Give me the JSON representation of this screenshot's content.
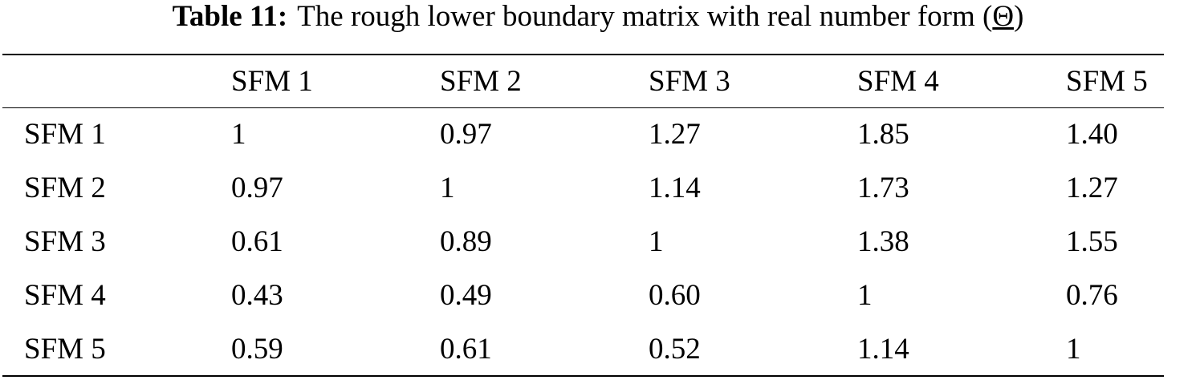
{
  "caption": {
    "label": "Table 11:",
    "parts": [
      "The rough lower boundary matrix with real number form (",
      "Θ",
      ")"
    ]
  },
  "table": {
    "columns": [
      "SFM 1",
      "SFM 2",
      "SFM 3",
      "SFM 4",
      "SFM 5"
    ],
    "rows": [
      {
        "label": "SFM 1",
        "cells": [
          "1",
          "0.97",
          "1.27",
          "1.85",
          "1.40"
        ]
      },
      {
        "label": "SFM 2",
        "cells": [
          "0.97",
          "1",
          "1.14",
          "1.73",
          "1.27"
        ]
      },
      {
        "label": "SFM 3",
        "cells": [
          "0.61",
          "0.89",
          "1",
          "1.38",
          "1.55"
        ]
      },
      {
        "label": "SFM 4",
        "cells": [
          "0.43",
          "0.49",
          "0.60",
          "1",
          "0.76"
        ]
      },
      {
        "label": "SFM 5",
        "cells": [
          "0.59",
          "0.61",
          "0.52",
          "1.14",
          "1"
        ]
      }
    ]
  }
}
